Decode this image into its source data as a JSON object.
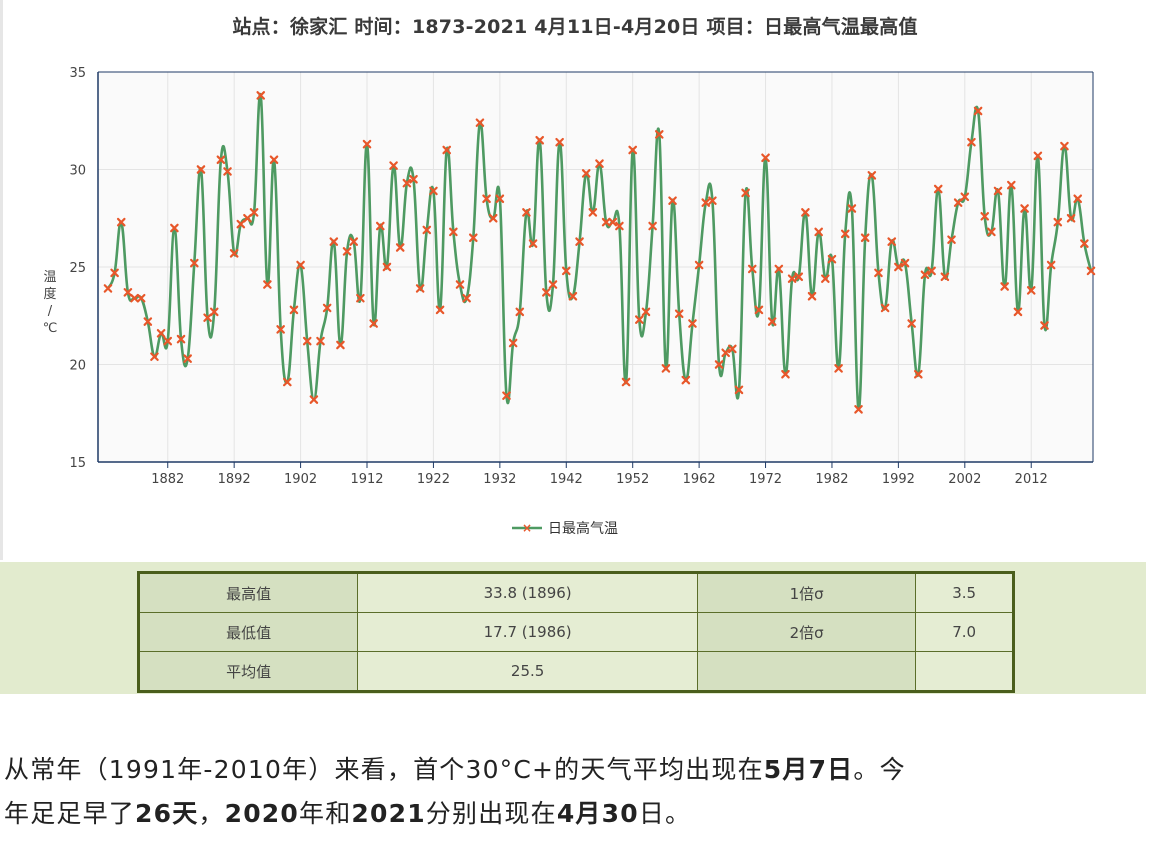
{
  "chart_data": {
    "type": "line",
    "title": "站点：徐家汇 时间：1873-2021  4月11日-4月20日 项目：日最高气温最高值",
    "ylabel": "温度/℃",
    "ylim": [
      15,
      35
    ],
    "yticks": [
      15,
      20,
      25,
      30,
      35
    ],
    "xlim": [
      1873,
      2021
    ],
    "xticks": [
      1882,
      1892,
      1902,
      1912,
      1922,
      1932,
      1942,
      1952,
      1962,
      1972,
      1982,
      1992,
      2002,
      2012
    ],
    "grid": true,
    "legend": "bottom",
    "series": [
      {
        "name": "日最高气温",
        "x": [
          1873,
          1874,
          1875,
          1876,
          1877,
          1878,
          1879,
          1880,
          1881,
          1882,
          1883,
          1884,
          1885,
          1886,
          1887,
          1888,
          1889,
          1890,
          1891,
          1892,
          1893,
          1894,
          1895,
          1896,
          1897,
          1898,
          1899,
          1900,
          1901,
          1902,
          1903,
          1904,
          1905,
          1906,
          1907,
          1908,
          1909,
          1910,
          1911,
          1912,
          1913,
          1914,
          1915,
          1916,
          1917,
          1918,
          1919,
          1920,
          1921,
          1922,
          1923,
          1924,
          1925,
          1926,
          1927,
          1928,
          1929,
          1930,
          1931,
          1932,
          1933,
          1934,
          1935,
          1936,
          1937,
          1938,
          1939,
          1940,
          1941,
          1942,
          1943,
          1944,
          1945,
          1946,
          1947,
          1948,
          1949,
          1950,
          1951,
          1952,
          1953,
          1954,
          1955,
          1956,
          1957,
          1958,
          1959,
          1960,
          1961,
          1962,
          1963,
          1964,
          1965,
          1966,
          1967,
          1968,
          1969,
          1970,
          1971,
          1972,
          1973,
          1974,
          1975,
          1976,
          1977,
          1978,
          1979,
          1980,
          1981,
          1982,
          1983,
          1984,
          1985,
          1986,
          1987,
          1988,
          1989,
          1990,
          1991,
          1992,
          1993,
          1994,
          1995,
          1996,
          1997,
          1998,
          1999,
          2000,
          2001,
          2002,
          2003,
          2004,
          2005,
          2006,
          2007,
          2008,
          2009,
          2010,
          2011,
          2012,
          2013,
          2014,
          2015,
          2016,
          2017,
          2018,
          2019,
          2020,
          2021
        ],
        "values": [
          23.9,
          24.7,
          27.3,
          23.7,
          23.4,
          23.4,
          22.2,
          20.4,
          21.6,
          21.2,
          27.0,
          21.3,
          20.3,
          25.2,
          30.0,
          22.4,
          22.7,
          30.5,
          29.9,
          25.7,
          27.2,
          27.5,
          27.8,
          33.8,
          24.1,
          30.5,
          21.8,
          19.1,
          22.8,
          25.1,
          21.2,
          18.2,
          21.2,
          22.9,
          26.3,
          21.0,
          25.8,
          26.3,
          23.4,
          31.3,
          22.1,
          27.1,
          25.0,
          30.2,
          26.0,
          29.3,
          29.5,
          23.9,
          26.9,
          28.9,
          22.8,
          31.0,
          26.8,
          24.1,
          23.4,
          26.5,
          32.4,
          28.5,
          27.5,
          28.5,
          18.4,
          21.1,
          22.7,
          27.8,
          26.2,
          31.5,
          23.7,
          24.1,
          31.4,
          24.8,
          23.5,
          26.3,
          29.8,
          27.8,
          30.3,
          27.3,
          27.3,
          27.1,
          19.1,
          31.0,
          22.3,
          22.7,
          27.1,
          31.8,
          19.8,
          28.4,
          22.6,
          19.2,
          22.1,
          25.1,
          28.3,
          28.4,
          20.0,
          20.6,
          20.8,
          18.7,
          28.8,
          24.9,
          22.8,
          30.6,
          22.2,
          24.9,
          19.5,
          24.4,
          24.5,
          27.8,
          23.5,
          26.8,
          24.4,
          25.4,
          19.8,
          26.7,
          28.0,
          17.7,
          26.5,
          29.7,
          24.7,
          22.9,
          26.3,
          25.0,
          25.2,
          22.1,
          19.5,
          24.6,
          24.8,
          29.0,
          24.5,
          26.4,
          28.3,
          28.6,
          31.4,
          33.0,
          27.6,
          26.8,
          28.9,
          24.0,
          29.2,
          22.7,
          28.0,
          23.8,
          30.7,
          22.0,
          25.1,
          27.3,
          31.2,
          27.5,
          28.5,
          26.2,
          24.8
        ]
      }
    ]
  },
  "colors": {
    "line": "#4e9a62",
    "marker": "#e8572a",
    "plot_bg": "#fafafa",
    "grid": "#e4e4e4",
    "axis": "#1f3a66",
    "table_border": "#4a5e1c",
    "table_label_bg": "#d5e0c1",
    "table_value_bg": "#e5edd3",
    "band_bg": "#e2ebce"
  },
  "legend": {
    "label": "日最高气温"
  },
  "stats": {
    "rows": [
      {
        "label": "最高值",
        "value": "33.8 (1896)",
        "label2": "1倍σ",
        "value2": "3.5"
      },
      {
        "label": "最低值",
        "value": "17.7 (1986)",
        "label2": "2倍σ",
        "value2": "7.0"
      },
      {
        "label": "平均值",
        "value": "25.5",
        "label2": "",
        "value2": ""
      }
    ]
  },
  "article": {
    "line1_a": "从常年（1991年-2010年）来看，首个30°C+的天气平均出现在",
    "line1_b": "5月7日",
    "line1_c": "。今",
    "line2_a": "年足足早了",
    "line2_b": "26天",
    "line2_c": "，",
    "line2_d": "2020",
    "line2_e": "年和",
    "line2_f": "2021",
    "line2_g": "分别出现在",
    "line2_h": "4月30",
    "line2_i": "日。"
  }
}
